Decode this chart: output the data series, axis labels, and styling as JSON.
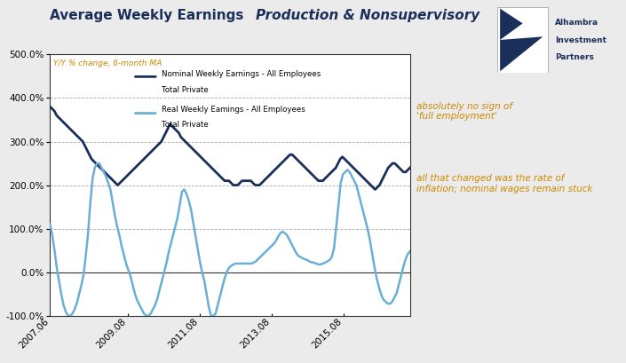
{
  "title_regular": "Average Weekly Earnings ",
  "title_italic": "Production & Nonsupervisory",
  "subtitle": "Y/Y % change, 6-month MA",
  "ylim": [
    -1.0,
    5.0
  ],
  "yticks": [
    -1.0,
    0.0,
    1.0,
    2.0,
    3.0,
    4.0,
    5.0
  ],
  "background_color": "#ebebeb",
  "plot_bg_color": "#ffffff",
  "nominal_color": "#1a2f5a",
  "real_color": "#6baed6",
  "annotation1": "absolutely no sign of\n'full employment'",
  "annotation2": "all that changed was the rate of\ninflation; nominal wages remain stuck",
  "legend1_line1": "Nominal Weekly Earnings - All Employees",
  "legend1_line2": "Total Private",
  "legend2_line1": "Real Weekly Eamings - All Employees",
  "legend2_line2": "Total Private",
  "xtick_labels": [
    "2007.06",
    "2009.08",
    "2011.08",
    "2013.08",
    "2015.08"
  ],
  "xtick_pos": [
    0.0,
    0.216,
    0.416,
    0.616,
    0.816
  ],
  "nominal_data": [
    3.8,
    3.75,
    3.7,
    3.6,
    3.55,
    3.5,
    3.45,
    3.4,
    3.35,
    3.3,
    3.25,
    3.2,
    3.15,
    3.1,
    3.05,
    3.0,
    2.9,
    2.8,
    2.7,
    2.6,
    2.55,
    2.5,
    2.45,
    2.4,
    2.35,
    2.3,
    2.25,
    2.2,
    2.15,
    2.1,
    2.05,
    2.0,
    2.05,
    2.1,
    2.15,
    2.2,
    2.25,
    2.3,
    2.35,
    2.4,
    2.45,
    2.5,
    2.55,
    2.6,
    2.65,
    2.7,
    2.75,
    2.8,
    2.85,
    2.9,
    2.95,
    3.0,
    3.1,
    3.2,
    3.3,
    3.4,
    3.35,
    3.3,
    3.25,
    3.2,
    3.1,
    3.05,
    3.0,
    2.95,
    2.9,
    2.85,
    2.8,
    2.75,
    2.7,
    2.65,
    2.6,
    2.55,
    2.5,
    2.45,
    2.4,
    2.35,
    2.3,
    2.25,
    2.2,
    2.15,
    2.1,
    2.1,
    2.1,
    2.05,
    2.0,
    2.0,
    2.0,
    2.05,
    2.1,
    2.1,
    2.1,
    2.1,
    2.1,
    2.05,
    2.0,
    2.0,
    2.0,
    2.05,
    2.1,
    2.15,
    2.2,
    2.25,
    2.3,
    2.35,
    2.4,
    2.45,
    2.5,
    2.55,
    2.6,
    2.65,
    2.7,
    2.7,
    2.65,
    2.6,
    2.55,
    2.5,
    2.45,
    2.4,
    2.35,
    2.3,
    2.25,
    2.2,
    2.15,
    2.1,
    2.1,
    2.1,
    2.15,
    2.2,
    2.25,
    2.3,
    2.35,
    2.4,
    2.5,
    2.6,
    2.65,
    2.6,
    2.55,
    2.5,
    2.45,
    2.4,
    2.35,
    2.3,
    2.25,
    2.2,
    2.15,
    2.1,
    2.05,
    2.0,
    1.95,
    1.9,
    1.95,
    2.0,
    2.1,
    2.2,
    2.3,
    2.4,
    2.45,
    2.5,
    2.5,
    2.45,
    2.4,
    2.35,
    2.3,
    2.3,
    2.35,
    2.4
  ],
  "real_data": [
    1.1,
    0.85,
    0.5,
    0.1,
    -0.2,
    -0.5,
    -0.75,
    -0.9,
    -1.0,
    -1.0,
    -0.95,
    -0.85,
    -0.7,
    -0.5,
    -0.3,
    -0.05,
    0.4,
    0.9,
    1.6,
    2.15,
    2.4,
    2.5,
    2.5,
    2.4,
    2.3,
    2.2,
    2.05,
    1.9,
    1.6,
    1.3,
    1.05,
    0.85,
    0.6,
    0.4,
    0.2,
    0.05,
    -0.1,
    -0.3,
    -0.5,
    -0.65,
    -0.75,
    -0.85,
    -0.95,
    -1.0,
    -1.0,
    -0.95,
    -0.85,
    -0.75,
    -0.6,
    -0.4,
    -0.2,
    0.0,
    0.2,
    0.45,
    0.65,
    0.85,
    1.05,
    1.25,
    1.55,
    1.85,
    1.9,
    1.8,
    1.65,
    1.45,
    1.15,
    0.85,
    0.55,
    0.25,
    0.0,
    -0.2,
    -0.5,
    -0.8,
    -1.0,
    -1.0,
    -0.95,
    -0.75,
    -0.55,
    -0.35,
    -0.15,
    0.0,
    0.1,
    0.15,
    0.18,
    0.2,
    0.2,
    0.2,
    0.2,
    0.2,
    0.2,
    0.2,
    0.2,
    0.22,
    0.25,
    0.3,
    0.35,
    0.4,
    0.45,
    0.5,
    0.55,
    0.6,
    0.65,
    0.72,
    0.82,
    0.9,
    0.93,
    0.9,
    0.85,
    0.75,
    0.65,
    0.55,
    0.45,
    0.38,
    0.35,
    0.32,
    0.3,
    0.28,
    0.25,
    0.23,
    0.22,
    0.2,
    0.18,
    0.18,
    0.2,
    0.22,
    0.25,
    0.28,
    0.35,
    0.55,
    1.05,
    1.55,
    2.05,
    2.25,
    2.3,
    2.35,
    2.3,
    2.2,
    2.1,
    2.0,
    1.8,
    1.6,
    1.4,
    1.2,
    1.0,
    0.75,
    0.45,
    0.15,
    -0.12,
    -0.32,
    -0.5,
    -0.62,
    -0.67,
    -0.72,
    -0.72,
    -0.68,
    -0.58,
    -0.48,
    -0.28,
    -0.08,
    0.12,
    0.3,
    0.42,
    0.48
  ]
}
